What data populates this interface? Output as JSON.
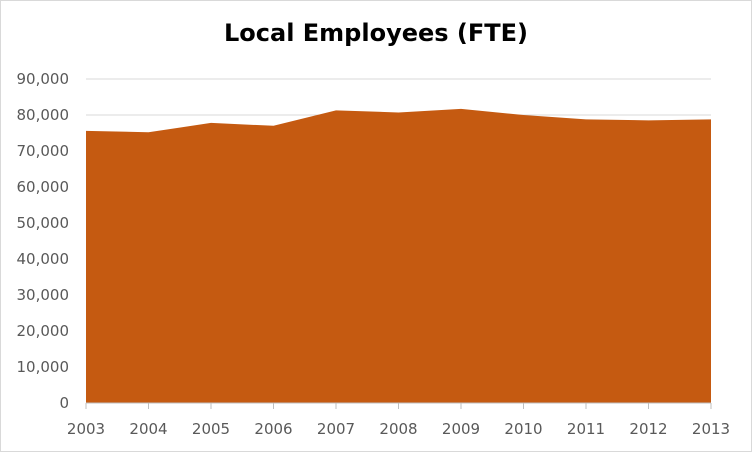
{
  "chart_data": {
    "type": "area",
    "title": "Local Employees (FTE)",
    "xlabel": "",
    "ylabel": "",
    "categories": [
      "2003",
      "2004",
      "2005",
      "2006",
      "2007",
      "2008",
      "2009",
      "2010",
      "2011",
      "2012",
      "2013"
    ],
    "values": [
      75600,
      75200,
      77800,
      77000,
      81300,
      80700,
      81700,
      80000,
      78800,
      78500,
      78800
    ],
    "ylim": [
      0,
      90000
    ],
    "yticks": [
      "0",
      "10,000",
      "20,000",
      "30,000",
      "40,000",
      "50,000",
      "60,000",
      "70,000",
      "80,000",
      "90,000"
    ],
    "ytick_values": [
      0,
      10000,
      20000,
      30000,
      40000,
      50000,
      60000,
      70000,
      80000,
      90000
    ],
    "grid": true,
    "legend": "none",
    "colors": {
      "area": "#c55a11",
      "grid": "#d9d9d9",
      "axis": "#bfbfbf",
      "labels": "#595959"
    }
  }
}
